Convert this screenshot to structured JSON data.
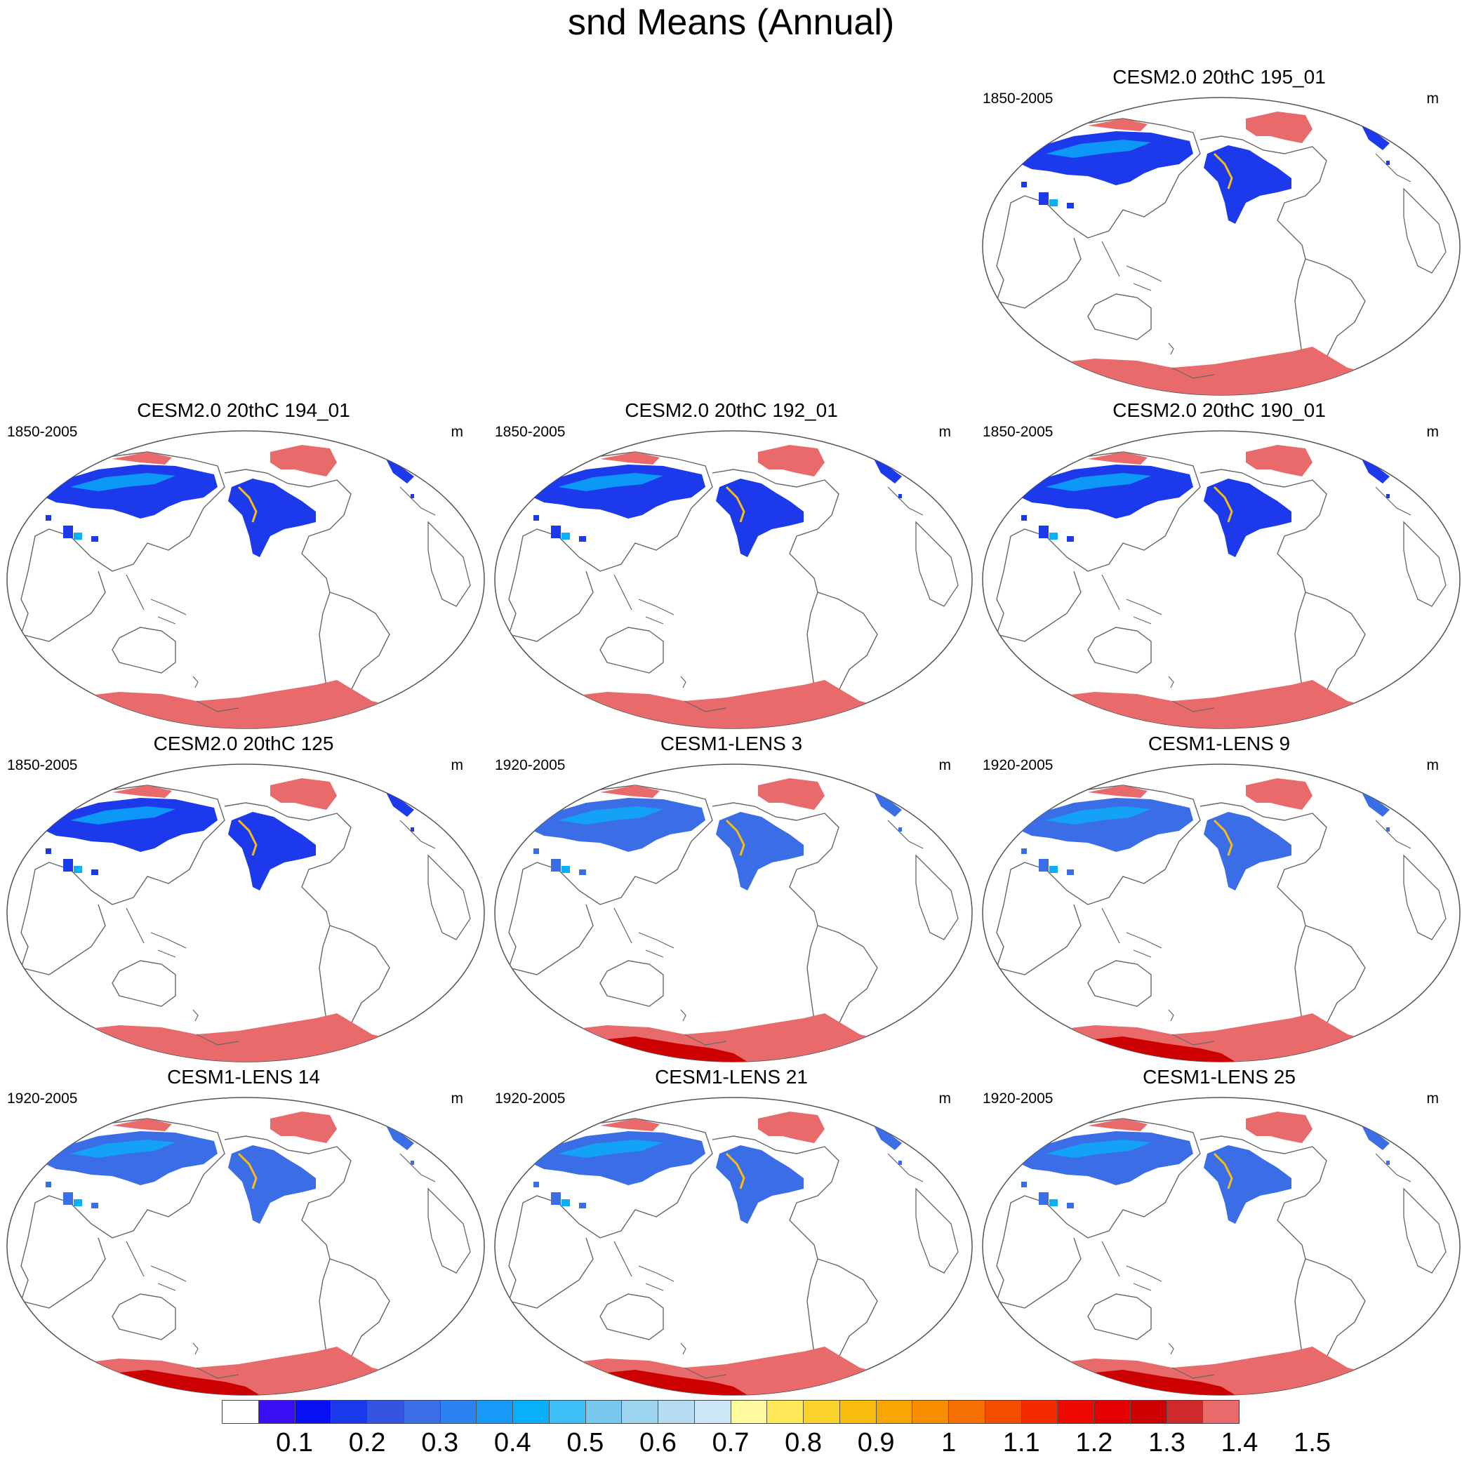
{
  "figure": {
    "title": "snd Means (Annual)"
  },
  "panels": [
    {
      "title": "CESM2.0 20thC 195_01",
      "period": "1850-2005",
      "units": "m",
      "antarctic_dark": false,
      "snow_style": "cesm2",
      "cell": "r0c2"
    },
    {
      "title": "CESM2.0 20thC 194_01",
      "period": "1850-2005",
      "units": "m",
      "antarctic_dark": false,
      "snow_style": "cesm2",
      "cell": "r1c0"
    },
    {
      "title": "CESM2.0 20thC 192_01",
      "period": "1850-2005",
      "units": "m",
      "antarctic_dark": false,
      "snow_style": "cesm2",
      "cell": "r1c1"
    },
    {
      "title": "CESM2.0 20thC 190_01",
      "period": "1850-2005",
      "units": "m",
      "antarctic_dark": false,
      "snow_style": "cesm2",
      "cell": "r1c2"
    },
    {
      "title": "CESM2.0 20thC 125",
      "period": "1850-2005",
      "units": "m",
      "antarctic_dark": false,
      "snow_style": "cesm2",
      "cell": "r2c0"
    },
    {
      "title": "CESM1-LENS 3",
      "period": "1920-2005",
      "units": "m",
      "antarctic_dark": true,
      "snow_style": "lens",
      "cell": "r2c1"
    },
    {
      "title": "CESM1-LENS 9",
      "period": "1920-2005",
      "units": "m",
      "antarctic_dark": true,
      "snow_style": "lens",
      "cell": "r2c2"
    },
    {
      "title": "CESM1-LENS 14",
      "period": "1920-2005",
      "units": "m",
      "antarctic_dark": true,
      "snow_style": "lens",
      "cell": "r3c0"
    },
    {
      "title": "CESM1-LENS 21",
      "period": "1920-2005",
      "units": "m",
      "antarctic_dark": true,
      "snow_style": "lens",
      "cell": "r3c1"
    },
    {
      "title": "CESM1-LENS 25",
      "period": "1920-2005",
      "units": "m",
      "antarctic_dark": true,
      "snow_style": "lens",
      "cell": "r3c2"
    }
  ],
  "colorbar": {
    "labels": [
      "0.1",
      "0.2",
      "0.3",
      "0.4",
      "0.5",
      "0.6",
      "0.7",
      "0.8",
      "0.9",
      "1",
      "1.1",
      "1.2",
      "1.3",
      "1.4",
      "1.5"
    ],
    "colors": [
      "#ffffff",
      "#3a0ff5",
      "#0a10f5",
      "#1c3aeb",
      "#3355e0",
      "#3b6ee6",
      "#2c82f0",
      "#1899f7",
      "#0aaffa",
      "#3fbff7",
      "#78c8ef",
      "#9ed3ef",
      "#b5dcf2",
      "#cde6f5",
      "#fffaa0",
      "#fde85a",
      "#fbd22a",
      "#f9bd10",
      "#f8a602",
      "#f68e00",
      "#f57000",
      "#f44d00",
      "#f42a00",
      "#ee0a00",
      "#e40000",
      "#cc0000",
      "#d02a2a",
      "#e86a6a"
    ]
  },
  "map_colors": {
    "antarctic": "#e86a6a",
    "antarctic_dark": "#cc0000",
    "greenland": "#e86a6a",
    "snow_dark": "#1c3aeb",
    "snow_mid": "#3b6ee6",
    "snow_light": "#0aaffa",
    "snow_edge": "#f9bd10",
    "coast": "#666666"
  }
}
